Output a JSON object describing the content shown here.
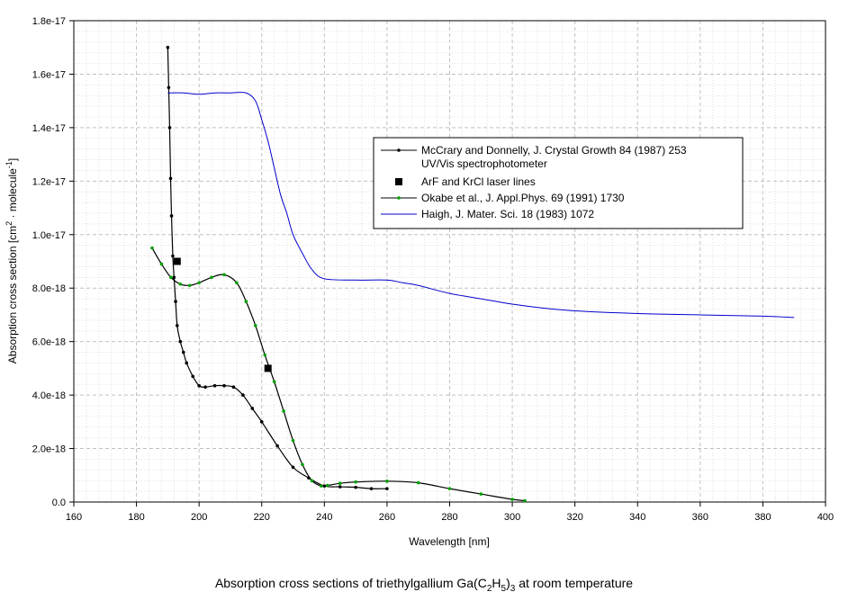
{
  "chart_data": {
    "type": "line",
    "title": "",
    "xlabel": "Wavelength [nm]",
    "ylabel": "Absorption cross section [cm2 · molecule-1]",
    "xlim": [
      160,
      400
    ],
    "ylim": [
      0,
      1.8e-17
    ],
    "x_ticks": [
      "160",
      "180",
      "200",
      "220",
      "240",
      "260",
      "280",
      "300",
      "320",
      "340",
      "360",
      "380",
      "400"
    ],
    "y_ticks": [
      "0.0",
      "2.0e-18",
      "4.0e-18",
      "6.0e-18",
      "8.0e-18",
      "1.0e-17",
      "1.2e-17",
      "1.4e-17",
      "1.6e-17",
      "1.8e-17"
    ],
    "grid": true,
    "legend_position": "upper-right",
    "series": [
      {
        "name": "McCrary and Donnelly, J. Crystal Growth 84 (1987) 253 UV/Vis spectrophotometer",
        "color": "#000000",
        "marker": "dot",
        "x": [
          190,
          190.3,
          190.6,
          190.9,
          191.2,
          191.6,
          192,
          192.5,
          193,
          194,
          195,
          196,
          198,
          200,
          202,
          205,
          208,
          211,
          214,
          217,
          220,
          225,
          230,
          235,
          240,
          245,
          250,
          255,
          260
        ],
        "values": [
          1.7e-17,
          1.55e-17,
          1.4e-17,
          1.21e-17,
          1.07e-17,
          9.2e-18,
          8.4e-18,
          7.5e-18,
          6.6e-18,
          6e-18,
          5.6e-18,
          5.2e-18,
          4.7e-18,
          4.35e-18,
          4.3e-18,
          4.35e-18,
          4.35e-18,
          4.3e-18,
          4e-18,
          3.5e-18,
          3e-18,
          2.1e-18,
          1.3e-18,
          9e-19,
          6e-19,
          5.7e-19,
          5.5e-19,
          5e-19,
          5e-19
        ]
      },
      {
        "name": "ArF and KrCl laser lines",
        "color": "#000000",
        "marker": "square",
        "x": [
          193,
          222
        ],
        "values": [
          9e-18,
          5e-18
        ]
      },
      {
        "name": "Okabe et al., J. Appl.Phys. 69 (1991) 1730",
        "color": "#00a000",
        "marker": "dot",
        "x": [
          185,
          188,
          191,
          194,
          197,
          200,
          204,
          208,
          212,
          215,
          218,
          221,
          224,
          227,
          230,
          233,
          236,
          239,
          241,
          245,
          250,
          260,
          270,
          280,
          290,
          300,
          304
        ],
        "values": [
          9.5e-18,
          8.9e-18,
          8.4e-18,
          8.15e-18,
          8.1e-18,
          8.2e-18,
          8.4e-18,
          8.5e-18,
          8.2e-18,
          7.5e-18,
          6.6e-18,
          5.5e-18,
          4.5e-18,
          3.4e-18,
          2.3e-18,
          1.4e-18,
          8e-19,
          6e-19,
          6.2e-19,
          7e-19,
          7.5e-19,
          7.8e-19,
          7.2e-19,
          5e-19,
          3e-19,
          1e-19,
          5e-20
        ]
      },
      {
        "name": "Haigh, J. Mater. Sci. 18 (1983) 1072",
        "color": "#0000cc",
        "marker": "none",
        "x": [
          190,
          195,
          200,
          205,
          210,
          215,
          218,
          220,
          222,
          224,
          226,
          228,
          230,
          233,
          236,
          240,
          250,
          260,
          265,
          270,
          280,
          290,
          300,
          310,
          320,
          340,
          360,
          380,
          390
        ],
        "values": [
          1.53e-17,
          1.53e-17,
          1.525e-17,
          1.53e-17,
          1.53e-17,
          1.53e-17,
          1.5e-17,
          1.43e-17,
          1.35e-17,
          1.25e-17,
          1.15e-17,
          1.08e-17,
          1e-17,
          9.3e-18,
          8.7e-18,
          8.35e-18,
          8.3e-18,
          8.3e-18,
          8.2e-18,
          8.1e-18,
          7.8e-18,
          7.6e-18,
          7.4e-18,
          7.25e-18,
          7.15e-18,
          7.05e-18,
          7e-18,
          6.95e-18,
          6.9e-18
        ]
      }
    ],
    "legend": [
      {
        "line1": "McCrary and Donnelly, J. Crystal Growth 84 (1987) 253",
        "line2": "UV/Vis spectrophotometer",
        "color": "#000000",
        "style": "line-dot"
      },
      {
        "line1": "ArF and KrCl laser lines",
        "line2": "",
        "color": "#000000",
        "style": "square"
      },
      {
        "line1": "Okabe et al., J. Appl.Phys. 69 (1991) 1730",
        "line2": "",
        "color": "#00a000",
        "style": "line-dot"
      },
      {
        "line1": "Haigh, J. Mater. Sci. 18 (1983) 1072",
        "line2": "",
        "color": "#0000cc",
        "style": "line"
      }
    ],
    "caption": {
      "prefix": "Absorption cross sections of triethylgallium Ga(C",
      "sub1": "2",
      "mid1": "H",
      "sub2": "5",
      "mid2": ")",
      "sub3": "3",
      "suffix": " at room temperature"
    }
  }
}
